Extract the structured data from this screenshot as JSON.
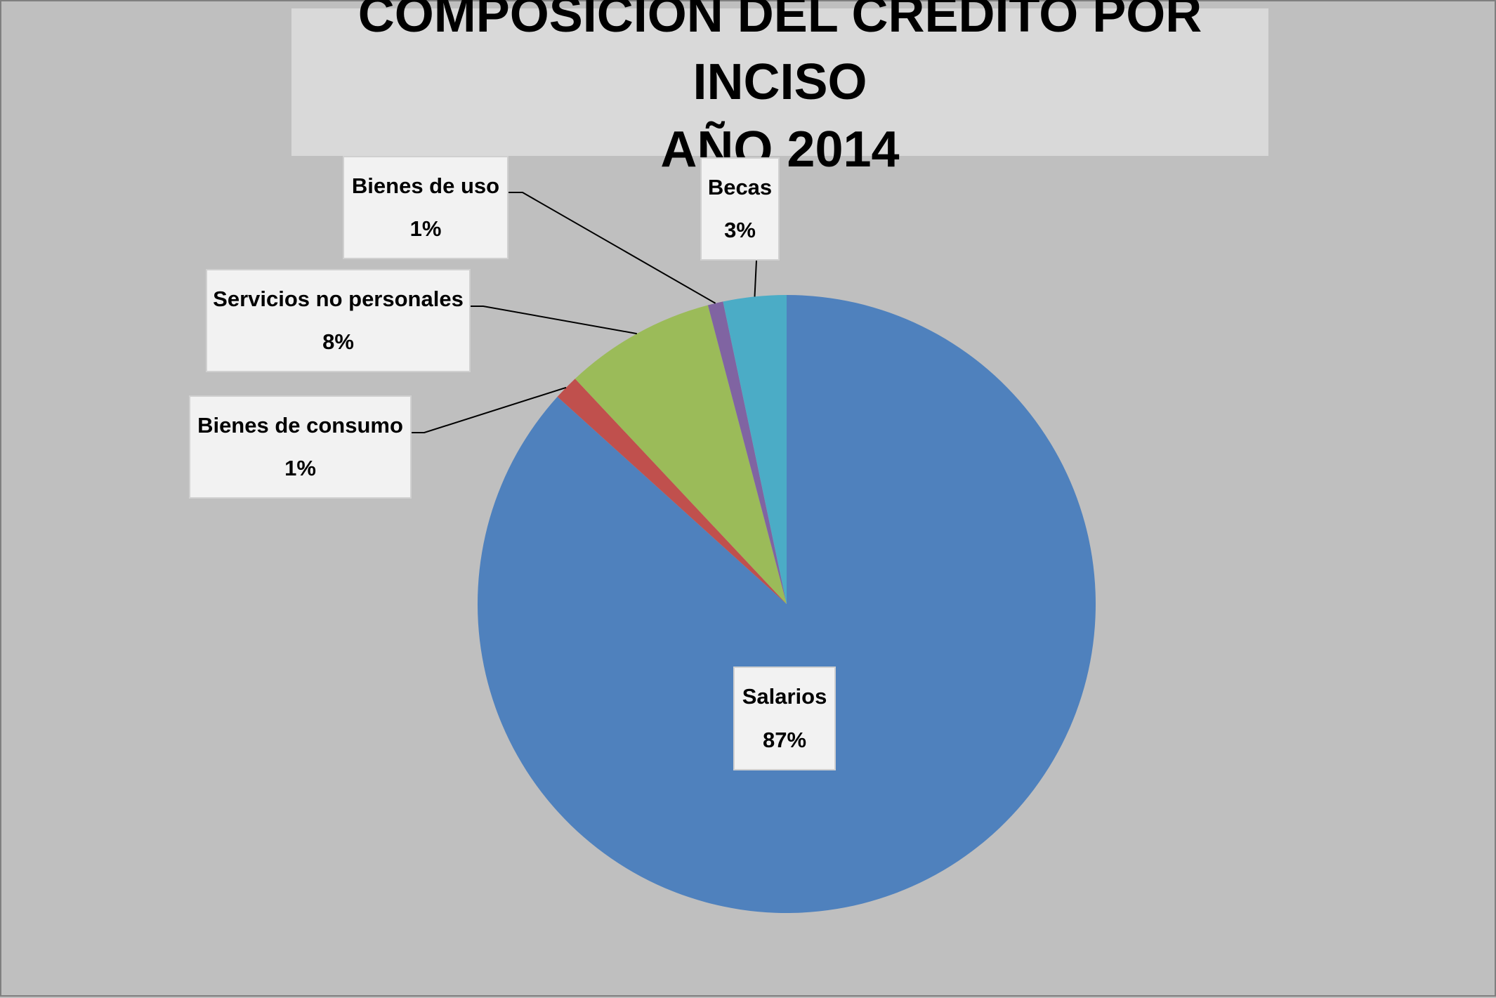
{
  "chart_data": {
    "type": "pie",
    "title_line1": "COMPOSICIÓN DEL CRÉDITO POR INCISO",
    "title_line2": "AÑO 2014",
    "start_angle_deg": 0,
    "direction": "clockwise",
    "slices": [
      {
        "name": "Salarios",
        "value": 86.7,
        "label": "87%",
        "color": "#4f81bd"
      },
      {
        "name": "Bienes de consumo",
        "value": 1.3,
        "label": "1%",
        "color": "#c0504d"
      },
      {
        "name": "Servicios no personales",
        "value": 7.9,
        "label": "8%",
        "color": "#9bbb59"
      },
      {
        "name": "Bienes de uso",
        "value": 0.8,
        "label": "1%",
        "color": "#8064a2"
      },
      {
        "name": "Becas",
        "value": 3.3,
        "label": "3%",
        "color": "#4bacc6"
      }
    ]
  }
}
